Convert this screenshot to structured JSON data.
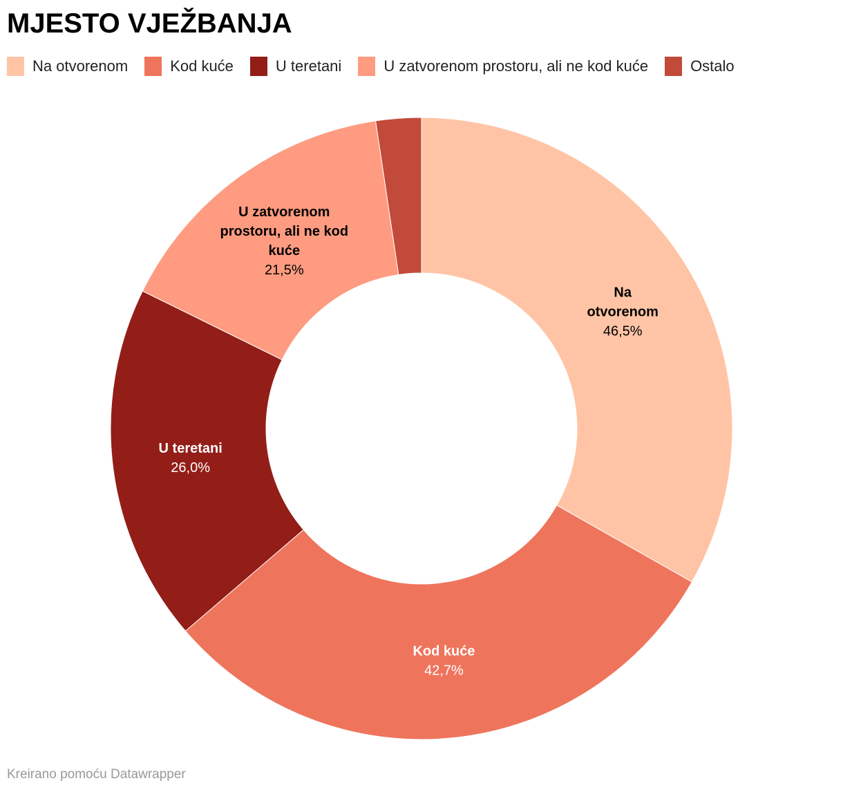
{
  "title": "MJESTO VJEŽBANJA",
  "footer": "Kreirano pomoću Datawrapper",
  "chart_data": {
    "type": "pie",
    "variant": "donut",
    "title": "MJESTO VJEŽBANJA",
    "legend_position": "top",
    "slices": [
      {
        "name": "Na otvorenom",
        "value": 46.5,
        "value_label": "46,5%",
        "label_lines": [
          "Na",
          "otvorenom"
        ],
        "color": "#ffc4a6",
        "text_color": "#000000"
      },
      {
        "name": "Kod kuće",
        "value": 42.7,
        "value_label": "42,7%",
        "label_lines": [
          "Kod kuće"
        ],
        "color": "#ef745c",
        "text_color": "#ffffff"
      },
      {
        "name": "U teretani",
        "value": 26.0,
        "value_label": "26,0%",
        "label_lines": [
          "U teretani"
        ],
        "color": "#931e18",
        "text_color": "#ffffff"
      },
      {
        "name": "U zatvorenom prostoru, ali ne kod kuće",
        "value": 21.5,
        "value_label": "21,5%",
        "label_lines": [
          "U zatvorenom",
          "prostoru, ali ne kod",
          "kuće"
        ],
        "color": "#fe9b80",
        "text_color": "#000000"
      },
      {
        "name": "Ostalo",
        "value": 3.3,
        "value_label": null,
        "label_lines": [],
        "color": "#c24a3a",
        "text_color": "#000000"
      }
    ]
  }
}
